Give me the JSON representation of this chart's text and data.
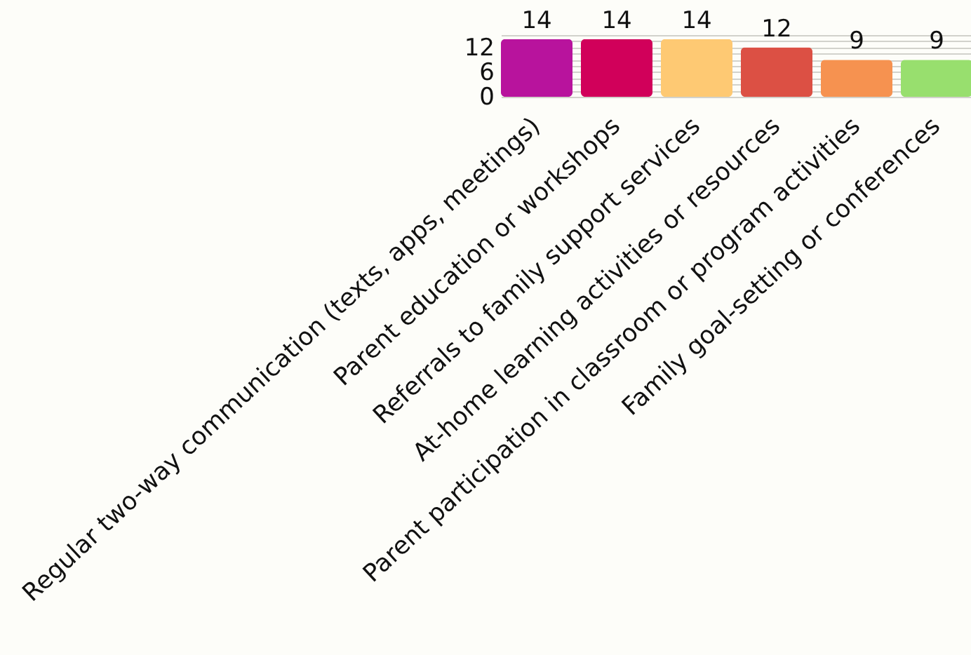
{
  "chart_data": {
    "type": "bar",
    "categories": [
      "Regular two-way communication (texts, apps, meetings)",
      "Parent education or workshops",
      "Referrals to family support services",
      "At-home learning activities or resources",
      "Parent participation in classroom or program activities",
      "Family goal-setting or conferences"
    ],
    "values": [
      14,
      14,
      14,
      12,
      9,
      9
    ],
    "colors": [
      "#b8139d",
      "#d1005a",
      "#fec973",
      "#dc5044",
      "#f69250",
      "#98df6e"
    ],
    "ylim": [
      0,
      15
    ],
    "yticks": [
      0,
      {
        "value": 1.5,
        "label": null
      },
      {
        "value": 3,
        "label": null
      },
      {
        "value": 4.5,
        "label": null
      },
      6,
      {
        "value": 7.5,
        "label": null
      },
      {
        "value": 9,
        "label": null
      },
      {
        "value": 10.5,
        "label": null
      },
      12,
      {
        "value": 13.5,
        "label": null
      },
      {
        "value": 15,
        "label": null
      }
    ],
    "grid": "y",
    "data_labels": true
  }
}
